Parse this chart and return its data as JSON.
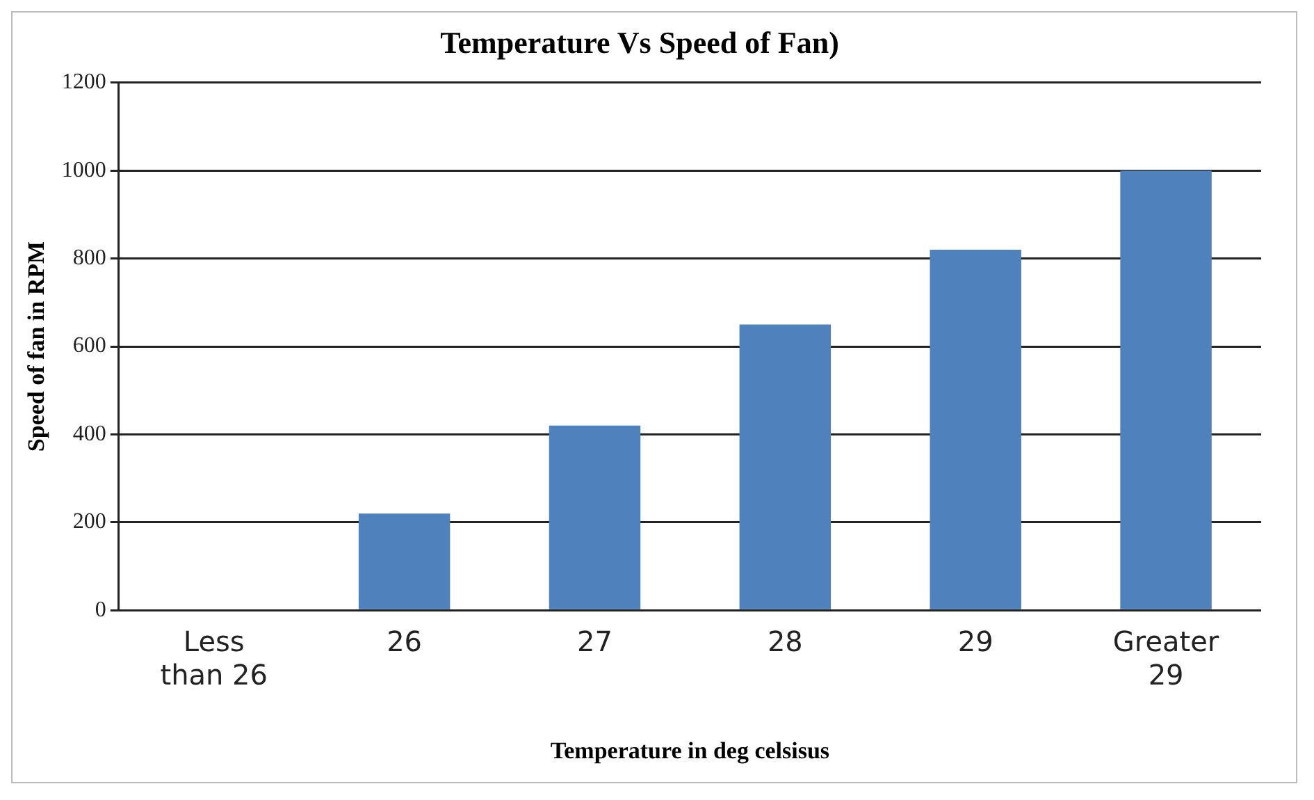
{
  "chart_data": {
    "type": "bar",
    "title": "Temperature Vs Speed of Fan)",
    "xlabel": "Temperature in deg celsisus",
    "ylabel": "Speed of fan in RPM",
    "categories": [
      "Less than 26",
      "26",
      "27",
      "28",
      "29",
      "Greater 29"
    ],
    "values": [
      0,
      220,
      420,
      650,
      820,
      1000
    ],
    "color": "#4f81bd",
    "ylim": [
      0,
      1200
    ],
    "yticks": [
      0,
      200,
      400,
      600,
      800,
      1000,
      1200
    ],
    "grid": "y",
    "legend": false
  }
}
